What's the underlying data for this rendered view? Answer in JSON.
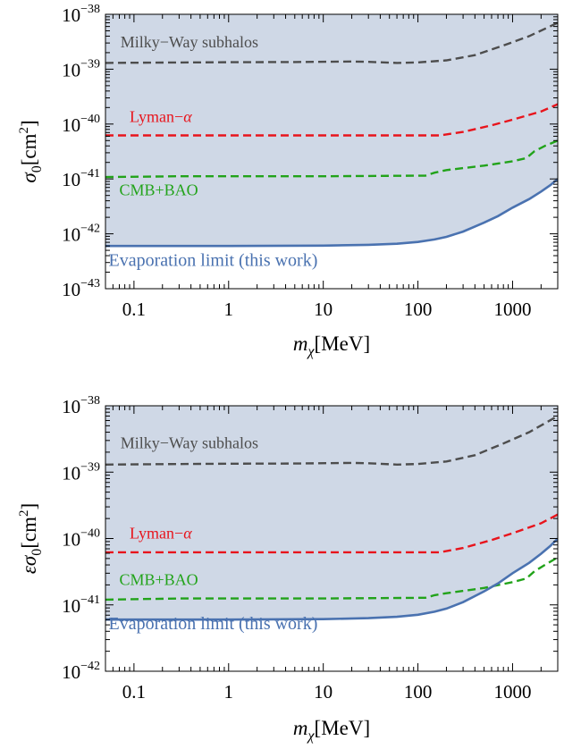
{
  "chart_data": [
    {
      "type": "line",
      "x_scale": "log",
      "y_scale": "log",
      "xlim": [
        0.05,
        3000
      ],
      "ylim": [
        1e-43,
        1e-38
      ],
      "xlabel": {
        "main": "m",
        "sub": "χ",
        "unit": "[MeV]"
      },
      "ylabel": {
        "main": "σ",
        "sub": "0",
        "unit": "[cm",
        "sup": "2",
        "close": "]"
      },
      "x_ticks": [
        {
          "value": 0.1,
          "label": "0.1"
        },
        {
          "value": 1,
          "label": "1"
        },
        {
          "value": 10,
          "label": "10"
        },
        {
          "value": 100,
          "label": "100"
        },
        {
          "value": 1000,
          "label": "1000"
        }
      ],
      "y_ticks": [
        {
          "value": 1e-43,
          "base": "10",
          "exp": "−43"
        },
        {
          "value": 1e-42,
          "base": "10",
          "exp": "−42"
        },
        {
          "value": 1e-41,
          "base": "10",
          "exp": "−41"
        },
        {
          "value": 1e-40,
          "base": "10",
          "exp": "−40"
        },
        {
          "value": 1e-39,
          "base": "10",
          "exp": "−39"
        },
        {
          "value": 1e-38,
          "base": "10",
          "exp": "−38"
        }
      ],
      "shaded_region": {
        "above_series": "Evaporation limit (this work)",
        "color": "#cfd8e6"
      },
      "series": [
        {
          "name": "Milky−Way subhalos",
          "color": "#4d4d4d",
          "style": "dashed",
          "label_anchor": {
            "x": 0.072,
            "y": 2.5e-39
          },
          "points": [
            [
              0.05,
              1.3e-39
            ],
            [
              0.2,
              1.32e-39
            ],
            [
              1,
              1.34e-39
            ],
            [
              5,
              1.35e-39
            ],
            [
              20,
              1.38e-39
            ],
            [
              30,
              1.36e-39
            ],
            [
              60,
              1.3e-39
            ],
            [
              100,
              1.33e-39
            ],
            [
              200,
              1.45e-39
            ],
            [
              400,
              1.8e-39
            ],
            [
              800,
              2.7e-39
            ],
            [
              1500,
              4e-39
            ],
            [
              3000,
              7e-39
            ]
          ]
        },
        {
          "name": "Lyman−α",
          "color": "#e8141c",
          "style": "dashed",
          "label_anchor": {
            "x": 0.09,
            "y": 1.1e-40
          },
          "points": [
            [
              0.05,
              6.2e-41
            ],
            [
              1,
              6.2e-41
            ],
            [
              10,
              6.2e-41
            ],
            [
              100,
              6.2e-41
            ],
            [
              170,
              6.2e-41
            ],
            [
              300,
              7.2e-41
            ],
            [
              600,
              9.5e-41
            ],
            [
              1000,
              1.2e-40
            ],
            [
              2000,
              1.7e-40
            ],
            [
              3000,
              2.3e-40
            ]
          ]
        },
        {
          "name": "CMB+BAO",
          "color": "#22a31a",
          "style": "dashed",
          "label_anchor": {
            "x": 0.07,
            "y": 5e-42
          },
          "points": [
            [
              0.05,
              1.08e-41
            ],
            [
              0.3,
              1.12e-41
            ],
            [
              1,
              1.12e-41
            ],
            [
              10,
              1.12e-41
            ],
            [
              120,
              1.15e-41
            ],
            [
              150,
              1.3e-41
            ],
            [
              200,
              1.45e-41
            ],
            [
              500,
              1.75e-41
            ],
            [
              1000,
              2.1e-41
            ],
            [
              1400,
              2.4e-41
            ],
            [
              1700,
              3.2e-41
            ],
            [
              2200,
              4e-41
            ],
            [
              3000,
              5e-41
            ]
          ]
        },
        {
          "name": "Evaporation limit (this work)",
          "color": "#4a72b0",
          "style": "solid",
          "label_anchor": {
            "x": 0.054,
            "y": 2.6e-43
          },
          "points": [
            [
              0.05,
              6e-43
            ],
            [
              1,
              6e-43
            ],
            [
              10,
              6.1e-43
            ],
            [
              30,
              6.3e-43
            ],
            [
              60,
              6.6e-43
            ],
            [
              100,
              7.1e-43
            ],
            [
              150,
              7.9e-43
            ],
            [
              200,
              8.8e-43
            ],
            [
              300,
              1.1e-42
            ],
            [
              500,
              1.6e-42
            ],
            [
              700,
              2.1e-42
            ],
            [
              1000,
              3e-42
            ],
            [
              1500,
              4.3e-42
            ],
            [
              2000,
              5.9e-42
            ],
            [
              2500,
              7.7e-42
            ],
            [
              3000,
              1e-41
            ]
          ]
        }
      ]
    },
    {
      "type": "line",
      "x_scale": "log",
      "y_scale": "log",
      "xlim": [
        0.05,
        3000
      ],
      "ylim": [
        1e-42,
        1e-38
      ],
      "xlabel": {
        "main": "m",
        "sub": "χ",
        "unit": "[MeV]"
      },
      "ylabel": {
        "main": "εσ",
        "sub": "0",
        "unit": "[cm",
        "sup": "2",
        "close": "]"
      },
      "x_ticks": [
        {
          "value": 0.1,
          "label": "0.1"
        },
        {
          "value": 1,
          "label": "1"
        },
        {
          "value": 10,
          "label": "10"
        },
        {
          "value": 100,
          "label": "100"
        },
        {
          "value": 1000,
          "label": "1000"
        }
      ],
      "y_ticks": [
        {
          "value": 1e-42,
          "base": "10",
          "exp": "−42"
        },
        {
          "value": 1e-41,
          "base": "10",
          "exp": "−41"
        },
        {
          "value": 1e-40,
          "base": "10",
          "exp": "−40"
        },
        {
          "value": 1e-39,
          "base": "10",
          "exp": "−39"
        },
        {
          "value": 1e-38,
          "base": "10",
          "exp": "−38"
        }
      ],
      "shaded_region": {
        "above_series": "Evaporation limit (this work)",
        "color": "#cfd8e6"
      },
      "series": [
        {
          "name": "Milky−Way subhalos",
          "color": "#4d4d4d",
          "style": "dashed",
          "label_anchor": {
            "x": 0.072,
            "y": 2.3e-39
          },
          "points": [
            [
              0.05,
              1.3e-39
            ],
            [
              0.2,
              1.32e-39
            ],
            [
              1,
              1.34e-39
            ],
            [
              5,
              1.35e-39
            ],
            [
              20,
              1.38e-39
            ],
            [
              30,
              1.36e-39
            ],
            [
              60,
              1.3e-39
            ],
            [
              100,
              1.33e-39
            ],
            [
              200,
              1.45e-39
            ],
            [
              400,
              1.8e-39
            ],
            [
              800,
              2.7e-39
            ],
            [
              1500,
              4e-39
            ],
            [
              3000,
              7e-39
            ]
          ]
        },
        {
          "name": "Lyman−α",
          "color": "#e8141c",
          "style": "dashed",
          "label_anchor": {
            "x": 0.09,
            "y": 1e-40
          },
          "points": [
            [
              0.05,
              6.2e-41
            ],
            [
              1,
              6.2e-41
            ],
            [
              10,
              6.2e-41
            ],
            [
              100,
              6.2e-41
            ],
            [
              170,
              6.2e-41
            ],
            [
              300,
              7.2e-41
            ],
            [
              600,
              9.5e-41
            ],
            [
              1000,
              1.2e-40
            ],
            [
              2000,
              1.7e-40
            ],
            [
              3000,
              2.3e-40
            ]
          ]
        },
        {
          "name": "CMB+BAO",
          "color": "#22a31a",
          "style": "dashed",
          "label_anchor": {
            "x": 0.07,
            "y": 2e-41
          },
          "points": [
            [
              0.05,
              1.2e-41
            ],
            [
              0.3,
              1.25e-41
            ],
            [
              1,
              1.25e-41
            ],
            [
              10,
              1.25e-41
            ],
            [
              120,
              1.28e-41
            ],
            [
              150,
              1.4e-41
            ],
            [
              200,
              1.5e-41
            ],
            [
              500,
              1.8e-41
            ],
            [
              1000,
              2.2e-41
            ],
            [
              1400,
              2.5e-41
            ],
            [
              1700,
              3.2e-41
            ],
            [
              2200,
              4e-41
            ],
            [
              3000,
              5.2e-41
            ]
          ]
        },
        {
          "name": "Evaporation limit (this work)",
          "color": "#4a72b0",
          "style": "solid",
          "label_anchor": {
            "x": 0.054,
            "y": 4.3e-42
          },
          "points": [
            [
              0.05,
              6e-42
            ],
            [
              1,
              6e-42
            ],
            [
              10,
              6.1e-42
            ],
            [
              30,
              6.3e-42
            ],
            [
              60,
              6.6e-42
            ],
            [
              100,
              7.1e-42
            ],
            [
              150,
              7.9e-42
            ],
            [
              200,
              8.8e-42
            ],
            [
              300,
              1.1e-41
            ],
            [
              500,
              1.6e-41
            ],
            [
              700,
              2.1e-41
            ],
            [
              1000,
              3e-41
            ],
            [
              1500,
              4.3e-41
            ],
            [
              2000,
              5.9e-41
            ],
            [
              2500,
              7.7e-41
            ],
            [
              3000,
              1e-40
            ]
          ]
        }
      ]
    }
  ]
}
